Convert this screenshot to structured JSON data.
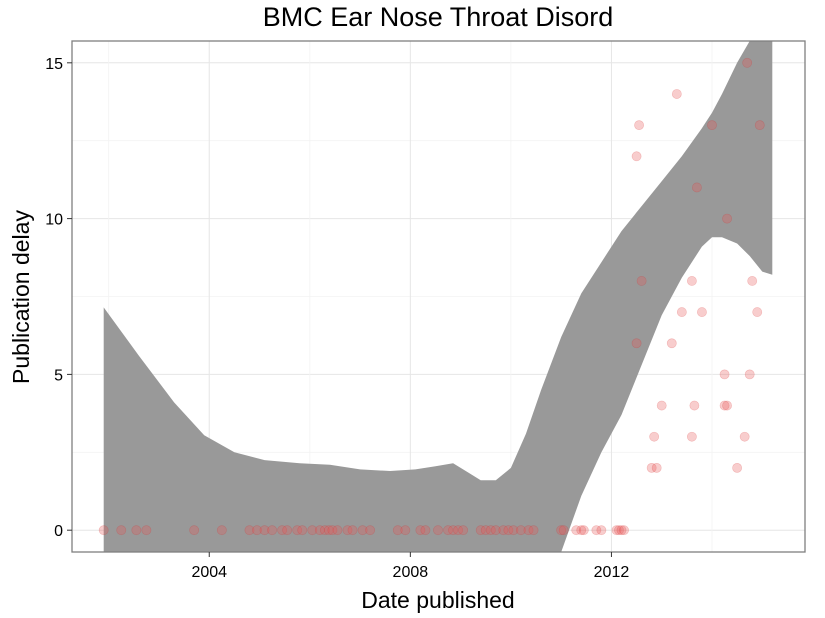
{
  "chart_data": {
    "type": "scatter",
    "title": "BMC Ear Nose Throat Disord",
    "xlabel": "Date published",
    "ylabel": "Publication delay",
    "x_ticks": [
      "2004",
      "2008",
      "2012"
    ],
    "y_ticks": [
      "0",
      "5",
      "10",
      "15"
    ],
    "xlim": [
      2001.27,
      2015.85
    ],
    "ylim": [
      -0.7,
      15.7
    ],
    "grid": true,
    "point_color": "#e8585a",
    "band_color": "#999999",
    "smooth_band": {
      "x": [
        2001.9,
        2002.6,
        2003.3,
        2003.9,
        2004.5,
        2005.1,
        2005.8,
        2006.4,
        2007.0,
        2007.6,
        2008.1,
        2008.5,
        2008.85,
        2009.15,
        2009.4,
        2009.7,
        2010.0,
        2010.3,
        2010.6,
        2011.0,
        2011.4,
        2011.8,
        2012.2,
        2012.6,
        2013.0,
        2013.4,
        2013.8,
        2014.0,
        2014.2,
        2014.5,
        2014.75,
        2015.0,
        2015.2
      ],
      "upper": [
        7.15,
        5.6,
        4.1,
        3.05,
        2.5,
        2.25,
        2.15,
        2.1,
        1.95,
        1.9,
        1.95,
        2.05,
        2.15,
        1.85,
        1.6,
        1.6,
        2.0,
        3.1,
        4.5,
        6.2,
        7.6,
        8.6,
        9.6,
        10.4,
        11.2,
        12.0,
        12.9,
        13.4,
        14.0,
        15.0,
        15.7,
        15.7,
        15.7
      ],
      "lower": [
        -0.7,
        -0.7,
        -0.7,
        -0.7,
        -0.7,
        -0.7,
        -0.7,
        -0.7,
        -0.7,
        -0.7,
        -0.7,
        -0.7,
        -0.7,
        -0.7,
        -0.7,
        -0.7,
        -0.7,
        -0.7,
        -0.7,
        -0.7,
        1.1,
        2.5,
        3.7,
        5.3,
        6.9,
        8.1,
        9.1,
        9.4,
        9.4,
        9.2,
        8.8,
        8.3,
        8.2
      ]
    },
    "points": [
      {
        "x": 2001.9,
        "y": 0
      },
      {
        "x": 2002.25,
        "y": 0
      },
      {
        "x": 2002.55,
        "y": 0
      },
      {
        "x": 2002.75,
        "y": 0
      },
      {
        "x": 2003.7,
        "y": 0
      },
      {
        "x": 2004.25,
        "y": 0
      },
      {
        "x": 2004.8,
        "y": 0
      },
      {
        "x": 2004.95,
        "y": 0
      },
      {
        "x": 2005.1,
        "y": 0
      },
      {
        "x": 2005.25,
        "y": 0
      },
      {
        "x": 2005.45,
        "y": 0
      },
      {
        "x": 2005.55,
        "y": 0
      },
      {
        "x": 2005.75,
        "y": 0
      },
      {
        "x": 2005.85,
        "y": 0
      },
      {
        "x": 2006.05,
        "y": 0
      },
      {
        "x": 2006.2,
        "y": 0
      },
      {
        "x": 2006.3,
        "y": 0
      },
      {
        "x": 2006.38,
        "y": 0
      },
      {
        "x": 2006.45,
        "y": 0
      },
      {
        "x": 2006.55,
        "y": 0
      },
      {
        "x": 2006.75,
        "y": 0
      },
      {
        "x": 2006.85,
        "y": 0
      },
      {
        "x": 2007.05,
        "y": 0
      },
      {
        "x": 2007.2,
        "y": 0
      },
      {
        "x": 2007.75,
        "y": 0
      },
      {
        "x": 2007.9,
        "y": 0
      },
      {
        "x": 2008.2,
        "y": 0
      },
      {
        "x": 2008.3,
        "y": 0
      },
      {
        "x": 2008.55,
        "y": 0
      },
      {
        "x": 2008.75,
        "y": 0
      },
      {
        "x": 2008.85,
        "y": 0
      },
      {
        "x": 2008.95,
        "y": 0
      },
      {
        "x": 2009.05,
        "y": 0
      },
      {
        "x": 2009.4,
        "y": 0
      },
      {
        "x": 2009.5,
        "y": 0
      },
      {
        "x": 2009.6,
        "y": 0
      },
      {
        "x": 2009.7,
        "y": 0
      },
      {
        "x": 2009.85,
        "y": 0
      },
      {
        "x": 2009.95,
        "y": 0
      },
      {
        "x": 2010.05,
        "y": 0
      },
      {
        "x": 2010.2,
        "y": 0
      },
      {
        "x": 2010.35,
        "y": 0
      },
      {
        "x": 2010.45,
        "y": 0
      },
      {
        "x": 2011.0,
        "y": 0
      },
      {
        "x": 2011.05,
        "y": 0
      },
      {
        "x": 2011.3,
        "y": 0
      },
      {
        "x": 2011.4,
        "y": 0
      },
      {
        "x": 2011.45,
        "y": 0
      },
      {
        "x": 2011.7,
        "y": 0
      },
      {
        "x": 2011.8,
        "y": 0
      },
      {
        "x": 2012.1,
        "y": 0
      },
      {
        "x": 2012.15,
        "y": 0
      },
      {
        "x": 2012.2,
        "y": 0
      },
      {
        "x": 2012.25,
        "y": 0
      },
      {
        "x": 2012.5,
        "y": 12
      },
      {
        "x": 2012.55,
        "y": 13
      },
      {
        "x": 2012.5,
        "y": 6
      },
      {
        "x": 2012.6,
        "y": 8
      },
      {
        "x": 2012.8,
        "y": 2
      },
      {
        "x": 2012.85,
        "y": 3
      },
      {
        "x": 2012.9,
        "y": 2
      },
      {
        "x": 2013.0,
        "y": 4
      },
      {
        "x": 2013.2,
        "y": 6
      },
      {
        "x": 2013.3,
        "y": 14
      },
      {
        "x": 2013.4,
        "y": 7
      },
      {
        "x": 2013.6,
        "y": 8
      },
      {
        "x": 2013.6,
        "y": 3
      },
      {
        "x": 2013.65,
        "y": 4
      },
      {
        "x": 2013.7,
        "y": 11
      },
      {
        "x": 2013.8,
        "y": 7
      },
      {
        "x": 2014.0,
        "y": 13
      },
      {
        "x": 2014.25,
        "y": 5
      },
      {
        "x": 2014.25,
        "y": 4
      },
      {
        "x": 2014.3,
        "y": 4
      },
      {
        "x": 2014.3,
        "y": 10
      },
      {
        "x": 2014.5,
        "y": 2
      },
      {
        "x": 2014.65,
        "y": 3
      },
      {
        "x": 2014.7,
        "y": 15
      },
      {
        "x": 2014.75,
        "y": 5
      },
      {
        "x": 2014.8,
        "y": 8
      },
      {
        "x": 2014.9,
        "y": 7
      },
      {
        "x": 2014.95,
        "y": 13
      }
    ]
  }
}
